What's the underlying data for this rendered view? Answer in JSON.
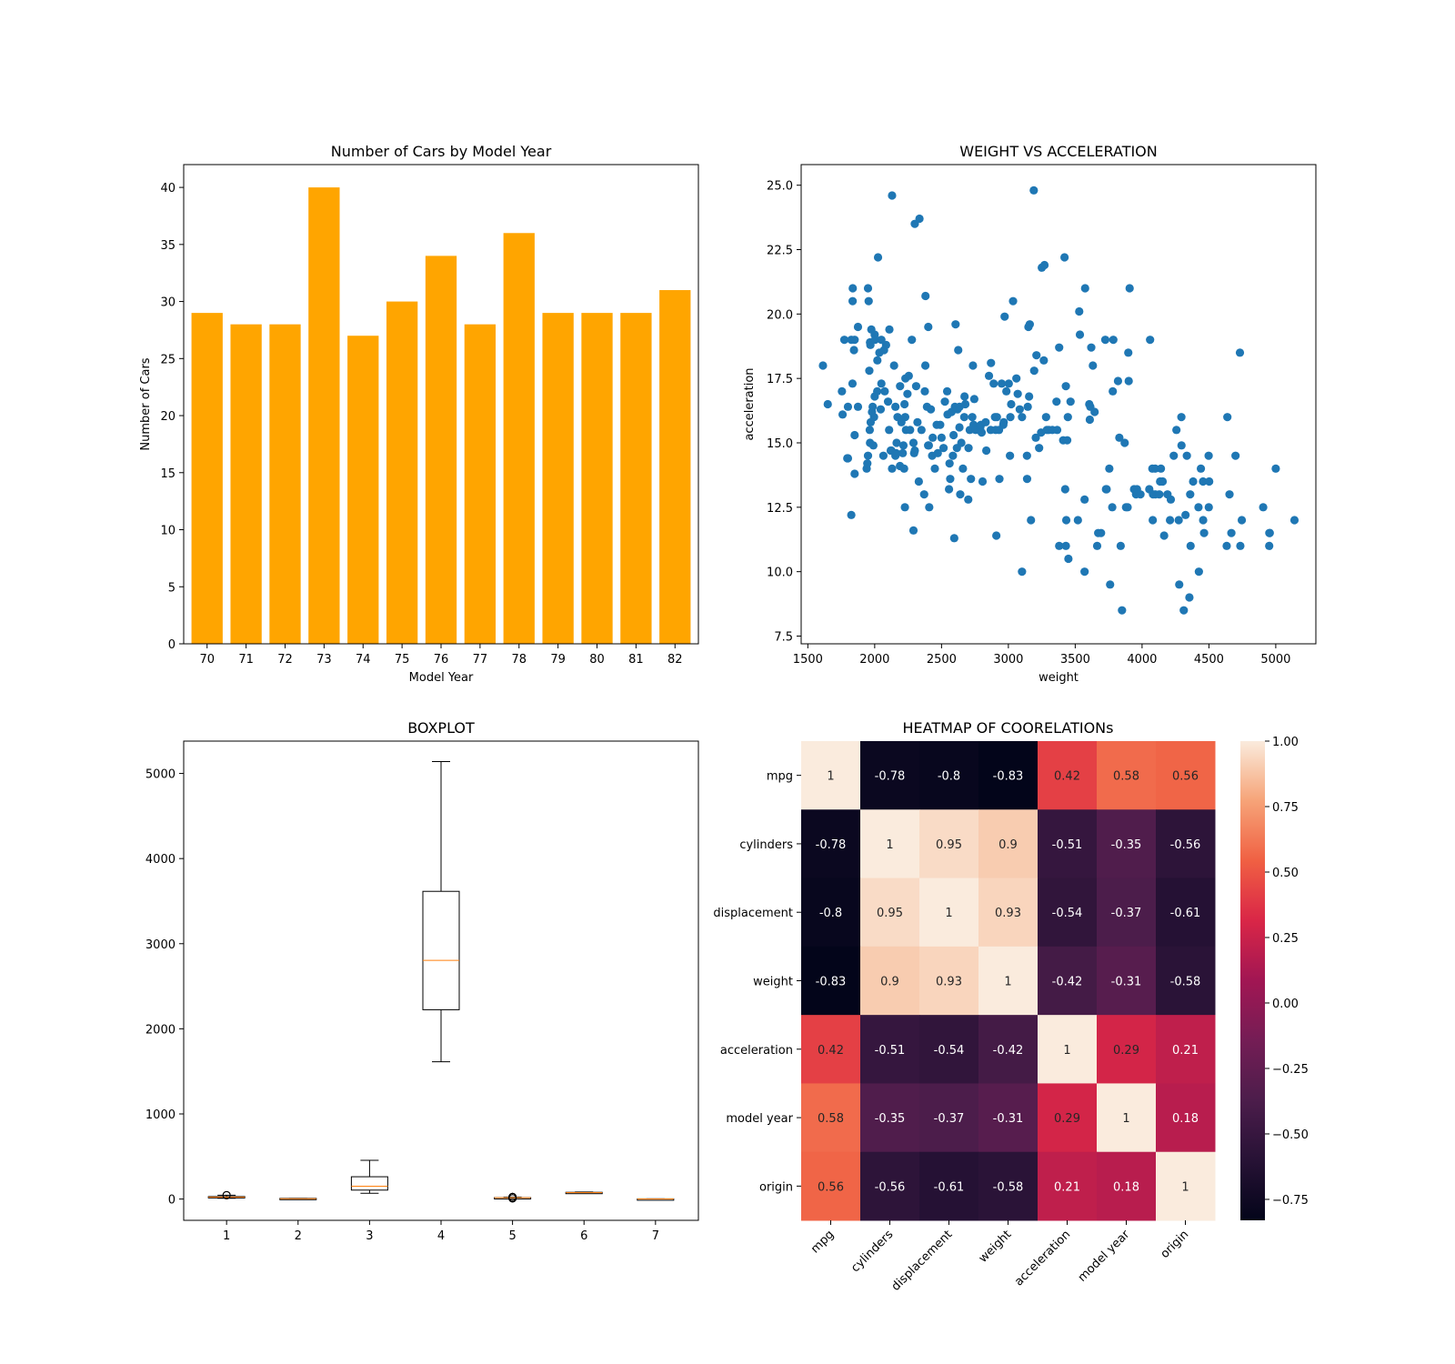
{
  "chart_data": [
    {
      "type": "bar",
      "title": "Number of Cars by Model Year",
      "xlabel": "Model Year",
      "ylabel": "Number of Cars",
      "categories": [
        "70",
        "71",
        "72",
        "73",
        "74",
        "75",
        "76",
        "77",
        "78",
        "79",
        "80",
        "81",
        "82"
      ],
      "values": [
        29,
        28,
        28,
        40,
        27,
        30,
        34,
        28,
        36,
        29,
        29,
        29,
        31
      ],
      "ylim": [
        0,
        42
      ],
      "yticks": [
        "0",
        "5",
        "10",
        "15",
        "20",
        "25",
        "30",
        "35",
        "40"
      ],
      "color": "#ffa500"
    },
    {
      "type": "scatter",
      "title": "WEIGHT VS ACCELERATION",
      "xlabel": "weight",
      "ylabel": "acceleration",
      "xlim": [
        1450,
        5300
      ],
      "ylim": [
        7.2,
        25.8
      ],
      "xticks": [
        "1500",
        "2000",
        "2500",
        "3000",
        "3500",
        "4000",
        "4500",
        "5000"
      ],
      "yticks": [
        "7.5",
        "10.0",
        "12.5",
        "15.0",
        "17.5",
        "20.0",
        "22.5",
        "25.0"
      ],
      "color": "#1f77b4",
      "points": [
        [
          1613,
          18.0
        ],
        [
          1649,
          16.5
        ],
        [
          1755,
          17.0
        ],
        [
          1760,
          16.1
        ],
        [
          1773,
          19.0
        ],
        [
          1795,
          14.4
        ],
        [
          1800,
          16.4
        ],
        [
          1800,
          14.4
        ],
        [
          1825,
          19.0
        ],
        [
          1825,
          12.2
        ],
        [
          1834,
          17.3
        ],
        [
          1835,
          20.5
        ],
        [
          1836,
          21.0
        ],
        [
          1845,
          18.6
        ],
        [
          1850,
          19.0
        ],
        [
          1850,
          15.3
        ],
        [
          1850,
          13.8
        ],
        [
          1875,
          19.5
        ],
        [
          1875,
          16.4
        ],
        [
          1940,
          14.0
        ],
        [
          1945,
          14.2
        ],
        [
          1950,
          21.0
        ],
        [
          1950,
          14.5
        ],
        [
          1955,
          20.5
        ],
        [
          1960,
          17.8
        ],
        [
          1963,
          15.5
        ],
        [
          1965,
          15.0
        ],
        [
          1965,
          18.9
        ],
        [
          1968,
          18.8
        ],
        [
          1970,
          15.8
        ],
        [
          1975,
          19.4
        ],
        [
          1980,
          16.2
        ],
        [
          1985,
          16.4
        ],
        [
          1990,
          14.9
        ],
        [
          1995,
          16.0
        ],
        [
          2000,
          16.8
        ],
        [
          2000,
          19.2
        ],
        [
          2003,
          19.0
        ],
        [
          2019,
          17.0
        ],
        [
          2020,
          18.2
        ],
        [
          2025,
          22.2
        ],
        [
          2035,
          18.5
        ],
        [
          2045,
          16.3
        ],
        [
          2050,
          19.0
        ],
        [
          2050,
          17.3
        ],
        [
          2065,
          14.5
        ],
        [
          2070,
          18.6
        ],
        [
          2075,
          17.0
        ],
        [
          2085,
          18.8
        ],
        [
          2100,
          16.6
        ],
        [
          2108,
          15.5
        ],
        [
          2110,
          19.4
        ],
        [
          2120,
          14.7
        ],
        [
          2125,
          14.7
        ],
        [
          2130,
          24.6
        ],
        [
          2130,
          14.0
        ],
        [
          2145,
          18.0
        ],
        [
          2155,
          14.5
        ],
        [
          2155,
          16.4
        ],
        [
          2160,
          14.6
        ],
        [
          2164,
          15.0
        ],
        [
          2171,
          16.0
        ],
        [
          2189,
          14.1
        ],
        [
          2190,
          17.2
        ],
        [
          2200,
          15.8
        ],
        [
          2210,
          14.6
        ],
        [
          2215,
          14.9
        ],
        [
          2220,
          14.0
        ],
        [
          2223,
          16.5
        ],
        [
          2226,
          12.5
        ],
        [
          2228,
          16.0
        ],
        [
          2230,
          17.5
        ],
        [
          2234,
          15.5
        ],
        [
          2245,
          16.9
        ],
        [
          2255,
          17.6
        ],
        [
          2265,
          15.5
        ],
        [
          2278,
          19.0
        ],
        [
          2290,
          15.0
        ],
        [
          2295,
          14.6
        ],
        [
          2300,
          23.5
        ],
        [
          2300,
          14.7
        ],
        [
          2310,
          17.2
        ],
        [
          2320,
          15.8
        ],
        [
          2330,
          13.5
        ],
        [
          2335,
          23.7
        ],
        [
          2350,
          15.5
        ],
        [
          2370,
          13.0
        ],
        [
          2375,
          17.0
        ],
        [
          2379,
          18.0
        ],
        [
          2380,
          20.7
        ],
        [
          2391,
          16.4
        ],
        [
          2400,
          14.9
        ],
        [
          2401,
          19.5
        ],
        [
          2405,
          14.9
        ],
        [
          2420,
          16.3
        ],
        [
          2430,
          14.5
        ],
        [
          2434,
          15.2
        ],
        [
          2450,
          14.0
        ],
        [
          2464,
          15.7
        ],
        [
          2472,
          14.6
        ],
        [
          2490,
          15.7
        ],
        [
          2500,
          15.2
        ],
        [
          2515,
          14.8
        ],
        [
          2525,
          16.6
        ],
        [
          2542,
          17.0
        ],
        [
          2545,
          16.1
        ],
        [
          2556,
          13.2
        ],
        [
          2560,
          14.2
        ],
        [
          2565,
          13.6
        ],
        [
          2575,
          16.2
        ],
        [
          2585,
          14.5
        ],
        [
          2590,
          15.3
        ],
        [
          2595,
          11.3
        ],
        [
          2600,
          16.4
        ],
        [
          2605,
          19.6
        ],
        [
          2615,
          14.8
        ],
        [
          2620,
          16.3
        ],
        [
          2625,
          18.6
        ],
        [
          2634,
          15.6
        ],
        [
          2635,
          16.4
        ],
        [
          2640,
          13.0
        ],
        [
          2648,
          15.0
        ],
        [
          2660,
          14.0
        ],
        [
          2670,
          16.0
        ],
        [
          2672,
          16.8
        ],
        [
          2678,
          16.5
        ],
        [
          2700,
          12.8
        ],
        [
          2702,
          14.8
        ],
        [
          2711,
          15.5
        ],
        [
          2720,
          13.6
        ],
        [
          2730,
          16.0
        ],
        [
          2735,
          18.0
        ],
        [
          2740,
          15.7
        ],
        [
          2745,
          16.7
        ],
        [
          2755,
          15.5
        ],
        [
          2790,
          15.6
        ],
        [
          2795,
          15.7
        ],
        [
          2800,
          15.4
        ],
        [
          2807,
          13.5
        ],
        [
          2830,
          15.8
        ],
        [
          2835,
          14.7
        ],
        [
          2855,
          17.6
        ],
        [
          2868,
          15.5
        ],
        [
          2870,
          18.1
        ],
        [
          2890,
          17.3
        ],
        [
          2900,
          16.0
        ],
        [
          2905,
          15.5
        ],
        [
          2910,
          11.4
        ],
        [
          2914,
          16.0
        ],
        [
          2930,
          15.5
        ],
        [
          2933,
          13.6
        ],
        [
          2950,
          17.3
        ],
        [
          2962,
          15.7
        ],
        [
          2965,
          15.8
        ],
        [
          2972,
          19.9
        ],
        [
          2985,
          17.0
        ],
        [
          3003,
          17.3
        ],
        [
          3012,
          14.5
        ],
        [
          3015,
          16.0
        ],
        [
          3021,
          16.5
        ],
        [
          3035,
          20.5
        ],
        [
          3060,
          17.5
        ],
        [
          3070,
          16.9
        ],
        [
          3085,
          16.3
        ],
        [
          3102,
          16.0
        ],
        [
          3139,
          14.5
        ],
        [
          3140,
          13.6
        ],
        [
          3145,
          16.4
        ],
        [
          3150,
          19.5
        ],
        [
          3155,
          16.8
        ],
        [
          3160,
          19.6
        ],
        [
          3169,
          12.0
        ],
        [
          3190,
          24.8
        ],
        [
          3193,
          17.8
        ],
        [
          3205,
          15.2
        ],
        [
          3210,
          18.4
        ],
        [
          3230,
          14.8
        ],
        [
          3245,
          15.4
        ],
        [
          3250,
          21.8
        ],
        [
          3265,
          18.2
        ],
        [
          3270,
          21.9
        ],
        [
          3282,
          16.0
        ],
        [
          3288,
          15.5
        ],
        [
          3302,
          15.5
        ],
        [
          3329,
          15.5
        ],
        [
          3360,
          16.6
        ],
        [
          3365,
          15.5
        ],
        [
          3380,
          18.7
        ],
        [
          3410,
          15.1
        ],
        [
          3420,
          22.2
        ],
        [
          3425,
          13.2
        ],
        [
          3430,
          17.2
        ],
        [
          3433,
          12.0
        ],
        [
          3440,
          15.1
        ],
        [
          3445,
          16.0
        ],
        [
          3449,
          10.5
        ],
        [
          3465,
          16.6
        ],
        [
          3530,
          20.1
        ],
        [
          3535,
          19.2
        ],
        [
          3570,
          12.8
        ],
        [
          3574,
          21.0
        ],
        [
          3605,
          16.5
        ],
        [
          3609,
          15.9
        ],
        [
          3613,
          16.4
        ],
        [
          3620,
          18.7
        ],
        [
          3632,
          18.0
        ],
        [
          3645,
          16.2
        ],
        [
          3664,
          11.0
        ],
        [
          3672,
          11.5
        ],
        [
          3693,
          11.5
        ],
        [
          3725,
          19.0
        ],
        [
          3730,
          13.2
        ],
        [
          3735,
          13.2
        ],
        [
          3755,
          14.0
        ],
        [
          3761,
          9.5
        ],
        [
          3777,
          12.5
        ],
        [
          3781,
          17.0
        ],
        [
          3785,
          19.0
        ],
        [
          3820,
          17.4
        ],
        [
          3830,
          15.2
        ],
        [
          3840,
          11.0
        ],
        [
          3850,
          8.5
        ],
        [
          3870,
          15.0
        ],
        [
          3880,
          12.5
        ],
        [
          3892,
          12.5
        ],
        [
          3897,
          18.5
        ],
        [
          3900,
          17.4
        ],
        [
          3907,
          21.0
        ],
        [
          3940,
          13.2
        ],
        [
          3955,
          13.0
        ],
        [
          3962,
          13.2
        ],
        [
          3988,
          13.0
        ],
        [
          4054,
          13.2
        ],
        [
          4060,
          19.0
        ],
        [
          4077,
          14.0
        ],
        [
          4082,
          13.0
        ],
        [
          4098,
          14.0
        ],
        [
          4100,
          13.0
        ],
        [
          4129,
          13.0
        ],
        [
          4135,
          13.5
        ],
        [
          4141,
          14.0
        ],
        [
          4154,
          13.5
        ],
        [
          4165,
          11.4
        ],
        [
          4190,
          13.0
        ],
        [
          4209,
          12.0
        ],
        [
          4215,
          12.8
        ],
        [
          4237,
          14.5
        ],
        [
          4257,
          15.5
        ],
        [
          4274,
          12.0
        ],
        [
          4278,
          9.5
        ],
        [
          4294,
          16.0
        ],
        [
          4295,
          14.9
        ],
        [
          4312,
          8.5
        ],
        [
          4325,
          12.2
        ],
        [
          4335,
          14.5
        ],
        [
          4354,
          9.0
        ],
        [
          4360,
          13.0
        ],
        [
          4363,
          11.0
        ],
        [
          4382,
          13.5
        ],
        [
          4422,
          12.5
        ],
        [
          4425,
          10.0
        ],
        [
          4440,
          14.0
        ],
        [
          4456,
          13.5
        ],
        [
          4457,
          12.0
        ],
        [
          4464,
          11.5
        ],
        [
          4498,
          14.5
        ],
        [
          4499,
          12.5
        ],
        [
          4502,
          13.5
        ],
        [
          4633,
          11.0
        ],
        [
          4638,
          16.0
        ],
        [
          4654,
          13.0
        ],
        [
          4668,
          11.5
        ],
        [
          4699,
          14.5
        ],
        [
          4735,
          11.0
        ],
        [
          4746,
          12.0
        ],
        [
          4906,
          12.5
        ],
        [
          4951,
          11.0
        ],
        [
          4952,
          11.5
        ],
        [
          4955,
          11.5
        ],
        [
          5140,
          12.0
        ],
        [
          3380,
          11.0
        ],
        [
          3430,
          11.0
        ],
        [
          4732,
          18.5
        ],
        [
          2408,
          12.5
        ],
        [
          5000,
          14.0
        ],
        [
          4080,
          12.0
        ],
        [
          2290,
          11.6
        ],
        [
          3102,
          10.0
        ],
        [
          3570,
          10.0
        ],
        [
          3520,
          12.0
        ]
      ]
    },
    {
      "type": "boxplot",
      "title": "BOXPLOT",
      "categories": [
        "1",
        "2",
        "3",
        "4",
        "5",
        "6",
        "7"
      ],
      "ylim": [
        -250,
        5380
      ],
      "yticks": [
        "0",
        "1000",
        "2000",
        "3000",
        "4000",
        "5000"
      ],
      "median_color": "#ff7f0e",
      "boxes": [
        {
          "whislo": 9,
          "q1": 17,
          "med": 23,
          "q3": 29,
          "whishi": 44.6,
          "fliers": [
            46.6,
            44.0
          ]
        },
        {
          "whislo": 3,
          "q1": 4,
          "med": 4,
          "q3": 8,
          "whishi": 8,
          "fliers": []
        },
        {
          "whislo": 68,
          "q1": 105,
          "med": 151,
          "q3": 262,
          "whishi": 455,
          "fliers": []
        },
        {
          "whislo": 1613,
          "q1": 2224,
          "med": 2804,
          "q3": 3615,
          "whishi": 5140,
          "fliers": []
        },
        {
          "whislo": 11.2,
          "q1": 13.8,
          "med": 15.5,
          "q3": 17.2,
          "whishi": 22.0,
          "fliers": [
            8.0,
            8.5,
            9.0,
            23.5,
            24.6,
            24.8
          ]
        },
        {
          "whislo": 70,
          "q1": 73,
          "med": 76,
          "q3": 79,
          "whishi": 82,
          "fliers": []
        },
        {
          "whislo": 1,
          "q1": 1,
          "med": 1,
          "q3": 2,
          "whishi": 3,
          "fliers": []
        }
      ]
    },
    {
      "type": "heatmap",
      "title": "HEATMAP OF COORELATIONs",
      "labels": [
        "mpg",
        "cylinders",
        "displacement",
        "weight",
        "acceleration",
        "model year",
        "origin"
      ],
      "values": [
        [
          1,
          -0.78,
          -0.8,
          -0.83,
          0.42,
          0.58,
          0.56
        ],
        [
          -0.78,
          1,
          0.95,
          0.9,
          -0.51,
          -0.35,
          -0.56
        ],
        [
          -0.8,
          0.95,
          1,
          0.93,
          -0.54,
          -0.37,
          -0.61
        ],
        [
          -0.83,
          0.9,
          0.93,
          1,
          -0.42,
          -0.31,
          -0.58
        ],
        [
          0.42,
          -0.51,
          -0.54,
          -0.42,
          1,
          0.29,
          0.21
        ],
        [
          0.58,
          -0.35,
          -0.37,
          -0.31,
          0.29,
          1,
          0.18
        ],
        [
          0.56,
          -0.56,
          -0.61,
          -0.58,
          0.21,
          0.18,
          1
        ]
      ],
      "vmin": -0.83,
      "vmax": 1.0,
      "colorbar_ticks": [
        1.0,
        0.75,
        0.5,
        0.25,
        0.0,
        -0.25,
        -0.5,
        -0.75
      ],
      "colorbar_tick_labels": [
        "1.00",
        "0.75",
        "0.50",
        "0.25",
        "0.00",
        "−0.25",
        "−0.50",
        "−0.75"
      ]
    }
  ]
}
